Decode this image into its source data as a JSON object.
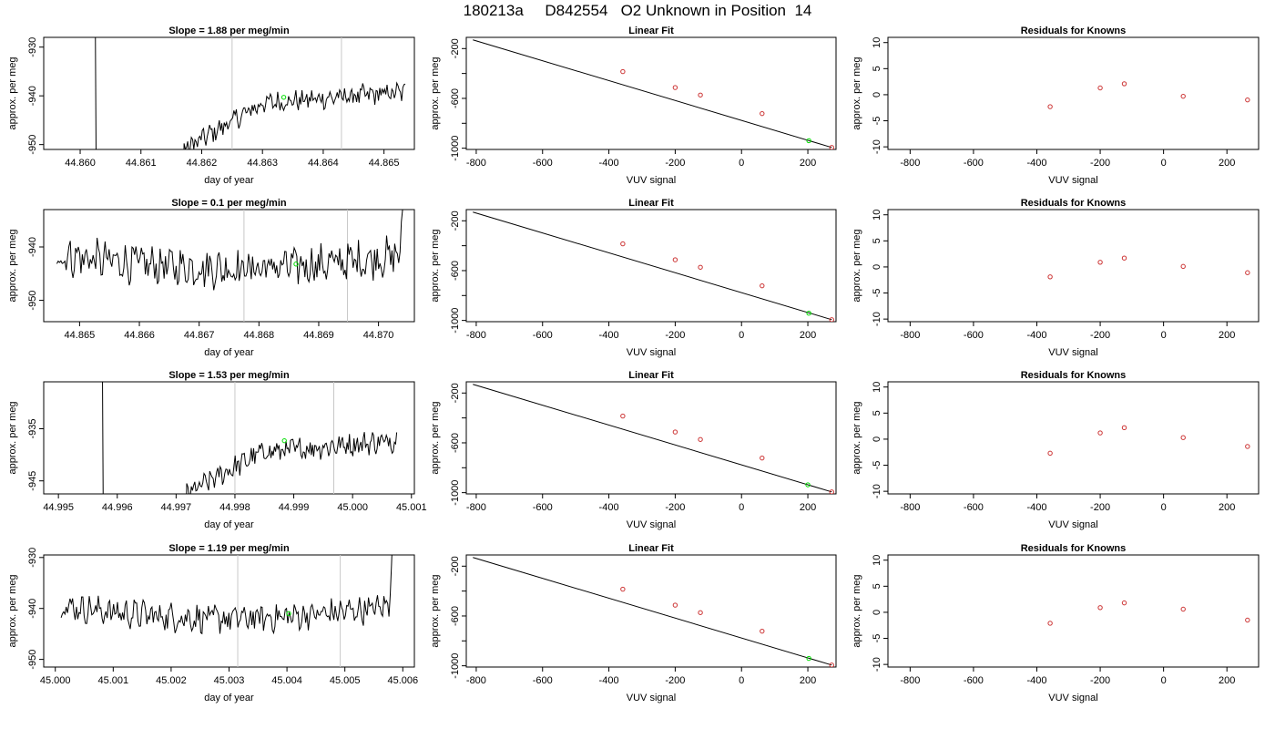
{
  "title": "180213a     D842554   O2 Unknown in Position  14",
  "chart_data": [
    {
      "type": "line",
      "row": 1,
      "column": "time",
      "title": "Slope =  1.88  per meg/min",
      "xlabel": "day of year",
      "ylabel": "approx. per meg",
      "xlim": [
        44.8594,
        44.8655
      ],
      "ylim": [
        -951,
        -928
      ],
      "xticks": [
        "44.860",
        "44.861",
        "44.862",
        "44.863",
        "44.864",
        "44.865"
      ],
      "yticks": [
        "-930",
        "-940",
        "-950"
      ],
      "vlines": [
        44.8625,
        44.8643
      ],
      "green_point": {
        "x": 44.86335,
        "y": -940.3
      },
      "series_shape": "rise",
      "trace_start": 44.86015,
      "trace_end": 44.86535,
      "trace_base": -939.5,
      "trace_noise": 1.8
    },
    {
      "type": "line",
      "row": 2,
      "column": "time",
      "title": "Slope =  0.1  per meg/min",
      "xlabel": "day of year",
      "ylabel": "approx. per meg",
      "xlim": [
        44.8644,
        44.8706
      ],
      "ylim": [
        -954,
        -933
      ],
      "xticks": [
        "44.865",
        "44.866",
        "44.867",
        "44.868",
        "44.869",
        "44.870"
      ],
      "yticks": [
        "-940",
        "-950"
      ],
      "vlines": [
        44.86775,
        44.86948
      ],
      "green_point": {
        "x": 44.86862,
        "y": -943.2
      },
      "series_shape": "flat_end_up",
      "trace_start": 44.86462,
      "trace_end": 44.87045,
      "trace_base": -941.5,
      "trace_noise": 3.0
    },
    {
      "type": "line",
      "row": 3,
      "column": "time",
      "title": "Slope =  1.53  per meg/min",
      "xlabel": "day of year",
      "ylabel": "approx. per meg",
      "xlim": [
        44.99475,
        45.00105
      ],
      "ylim": [
        -947.5,
        -926
      ],
      "xticks": [
        "44.995",
        "44.996",
        "44.997",
        "44.998",
        "44.999",
        "45.000",
        "45.001"
      ],
      "yticks": [
        "-935",
        "-945"
      ],
      "vlines": [
        44.998,
        44.99968
      ],
      "green_point": {
        "x": 44.99884,
        "y": -937.3
      },
      "series_shape": "rise",
      "trace_start": 44.99565,
      "trace_end": 45.00075,
      "trace_base": -937.5,
      "trace_noise": 1.8
    },
    {
      "type": "line",
      "row": 4,
      "column": "time",
      "title": "Slope =  1.19  per meg/min",
      "xlabel": "day of year",
      "ylabel": "approx. per meg",
      "xlim": [
        44.9998,
        45.0062
      ],
      "ylim": [
        -951.5,
        -929.5
      ],
      "xticks": [
        "45.000",
        "45.001",
        "45.002",
        "45.003",
        "45.004",
        "45.005",
        "45.006"
      ],
      "yticks": [
        "-930",
        "-940",
        "-950"
      ],
      "vlines": [
        45.00315,
        45.00492
      ],
      "green_point": {
        "x": 45.00403,
        "y": -941.0
      },
      "series_shape": "flat_end_up",
      "trace_start": 45.0001,
      "trace_end": 45.00585,
      "trace_base": -939.5,
      "trace_noise": 2.3
    },
    {
      "type": "scatter",
      "row": 1,
      "column": "fit",
      "title": "Linear Fit",
      "xlabel": "VUV signal",
      "ylabel": "approx. per meg",
      "xlim": [
        -830,
        285
      ],
      "ylim": [
        -1010,
        -110
      ],
      "xticks": [
        -800,
        -600,
        -400,
        -200,
        0,
        200
      ],
      "yticks": [
        -200,
        -600,
        -1000
      ],
      "line": {
        "x1": -810,
        "y1": -130,
        "x2": 272,
        "y2": -994
      },
      "points": [
        [
          -358,
          -385
        ],
        [
          -200,
          -513
        ],
        [
          -124,
          -573
        ],
        [
          62,
          -722
        ],
        [
          272,
          -994
        ]
      ],
      "green_point": {
        "x": 203,
        "y": -940
      }
    },
    {
      "type": "scatter",
      "row": 2,
      "column": "fit",
      "title": "Linear Fit",
      "xlabel": "VUV signal",
      "ylabel": "approx. per meg",
      "xlim": [
        -830,
        285
      ],
      "ylim": [
        -1010,
        -110
      ],
      "xticks": [
        -800,
        -600,
        -400,
        -200,
        0,
        200
      ],
      "yticks": [
        -200,
        -600,
        -1000
      ],
      "line": {
        "x1": -810,
        "y1": -130,
        "x2": 272,
        "y2": -994
      },
      "points": [
        [
          -358,
          -385
        ],
        [
          -200,
          -513
        ],
        [
          -124,
          -573
        ],
        [
          62,
          -722
        ],
        [
          272,
          -994
        ]
      ],
      "green_point": {
        "x": 203,
        "y": -942
      }
    },
    {
      "type": "scatter",
      "row": 3,
      "column": "fit",
      "title": "Linear Fit",
      "xlabel": "VUV signal",
      "ylabel": "approx. per meg",
      "xlim": [
        -830,
        285
      ],
      "ylim": [
        -1010,
        -110
      ],
      "xticks": [
        -800,
        -600,
        -400,
        -200,
        0,
        200
      ],
      "yticks": [
        -200,
        -600,
        -1000
      ],
      "line": {
        "x1": -810,
        "y1": -130,
        "x2": 272,
        "y2": -994
      },
      "points": [
        [
          -358,
          -385
        ],
        [
          -200,
          -513
        ],
        [
          -124,
          -573
        ],
        [
          62,
          -722
        ],
        [
          272,
          -994
        ]
      ],
      "green_point": {
        "x": 200,
        "y": -937
      }
    },
    {
      "type": "scatter",
      "row": 4,
      "column": "fit",
      "title": "Linear Fit",
      "xlabel": "VUV signal",
      "ylabel": "approx. per meg",
      "xlim": [
        -830,
        285
      ],
      "ylim": [
        -1010,
        -110
      ],
      "xticks": [
        -800,
        -600,
        -400,
        -200,
        0,
        200
      ],
      "yticks": [
        -200,
        -600,
        -1000
      ],
      "line": {
        "x1": -810,
        "y1": -130,
        "x2": 272,
        "y2": -994
      },
      "points": [
        [
          -358,
          -385
        ],
        [
          -200,
          -513
        ],
        [
          -124,
          -573
        ],
        [
          62,
          -722
        ],
        [
          272,
          -994
        ]
      ],
      "green_point": {
        "x": 203,
        "y": -941
      }
    },
    {
      "type": "scatter",
      "row": 1,
      "column": "residuals",
      "title": "Residuals for Knowns",
      "xlabel": "VUV signal",
      "ylabel": "approx. per meg",
      "xlim": [
        -870,
        300
      ],
      "ylim": [
        -10.5,
        11
      ],
      "xticks": [
        -800,
        -600,
        -400,
        -200,
        0,
        200
      ],
      "yticks": [
        -10,
        -5,
        0,
        5,
        10
      ],
      "points": [
        [
          -358,
          -2.3
        ],
        [
          -200,
          1.3
        ],
        [
          -124,
          2.1
        ],
        [
          62,
          -0.3
        ],
        [
          265,
          -1.0
        ]
      ]
    },
    {
      "type": "scatter",
      "row": 2,
      "column": "residuals",
      "title": "Residuals for Knowns",
      "xlabel": "VUV signal",
      "ylabel": "approx. per meg",
      "xlim": [
        -870,
        300
      ],
      "ylim": [
        -10.5,
        11
      ],
      "xticks": [
        -800,
        -600,
        -400,
        -200,
        0,
        200
      ],
      "yticks": [
        -10,
        -5,
        0,
        5,
        10
      ],
      "points": [
        [
          -358,
          -1.9
        ],
        [
          -200,
          0.9
        ],
        [
          -124,
          1.7
        ],
        [
          62,
          0.1
        ],
        [
          265,
          -1.1
        ]
      ]
    },
    {
      "type": "scatter",
      "row": 3,
      "column": "residuals",
      "title": "Residuals for Knowns",
      "xlabel": "VUV signal",
      "ylabel": "approx. per meg",
      "xlim": [
        -870,
        300
      ],
      "ylim": [
        -10.5,
        11
      ],
      "xticks": [
        -800,
        -600,
        -400,
        -200,
        0,
        200
      ],
      "yticks": [
        -10,
        -5,
        0,
        5,
        10
      ],
      "points": [
        [
          -358,
          -2.7
        ],
        [
          -200,
          1.2
        ],
        [
          -124,
          2.2
        ],
        [
          62,
          0.3
        ],
        [
          265,
          -1.4
        ]
      ]
    },
    {
      "type": "scatter",
      "row": 4,
      "column": "residuals",
      "title": "Residuals for Knowns",
      "xlabel": "VUV signal",
      "ylabel": "approx. per meg",
      "xlim": [
        -870,
        300
      ],
      "ylim": [
        -10.5,
        11
      ],
      "xticks": [
        -800,
        -600,
        -400,
        -200,
        0,
        200
      ],
      "yticks": [
        -10,
        -5,
        0,
        5,
        10
      ],
      "points": [
        [
          -358,
          -2.1
        ],
        [
          -200,
          0.9
        ],
        [
          -124,
          1.8
        ],
        [
          62,
          0.6
        ],
        [
          265,
          -1.5
        ]
      ]
    }
  ],
  "colors": {
    "trace": "#000000",
    "green": "#00dd00",
    "known": "#cc3333",
    "vline": "#c8c8c8"
  }
}
